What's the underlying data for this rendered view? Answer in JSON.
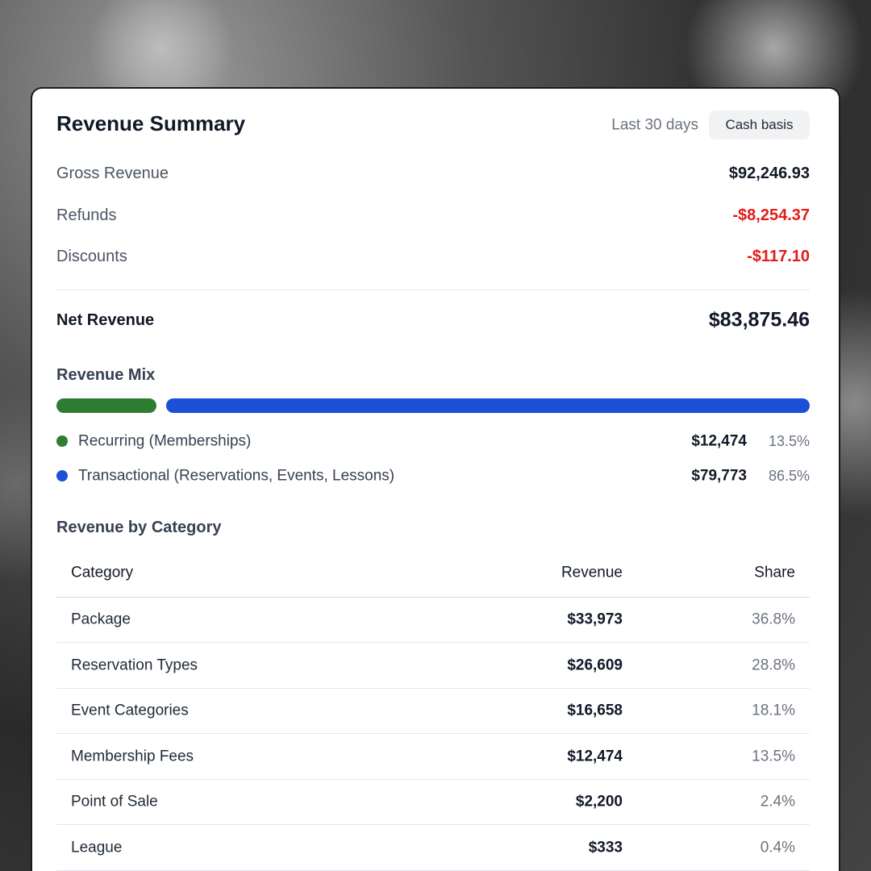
{
  "header": {
    "title": "Revenue Summary",
    "period": "Last 30 days",
    "basis": "Cash basis"
  },
  "summary": {
    "rows": [
      {
        "label": "Gross Revenue",
        "value": "$92,246.93"
      },
      {
        "label": "Refunds",
        "value": "-$8,254.37"
      },
      {
        "label": "Discounts",
        "value": "-$117.10"
      }
    ],
    "net": {
      "label": "Net Revenue",
      "value": "$83,875.46"
    }
  },
  "revenue_mix": {
    "title": "Revenue Mix",
    "items": [
      {
        "name": "Recurring (Memberships)",
        "color": "#2f7d32",
        "amount": "$12,474",
        "share": 13.5,
        "share_label": "13.5%"
      },
      {
        "name": "Transactional (Reservations, Events, Lessons)",
        "color": "#1d4fd8",
        "amount": "$79,773",
        "share": 86.5,
        "share_label": "86.5%"
      }
    ]
  },
  "table": {
    "title": "Revenue by Category",
    "columns": [
      "Category",
      "Revenue",
      "Share"
    ],
    "rows": [
      [
        "Package",
        "$33,973",
        "36.8%"
      ],
      [
        "Reservation Types",
        "$26,609",
        "28.8%"
      ],
      [
        "Event Categories",
        "$16,658",
        "18.1%"
      ],
      [
        "Membership Fees",
        "$12,474",
        "13.5%"
      ],
      [
        "Point of Sale",
        "$2,200",
        "2.4%"
      ],
      [
        "League",
        "$333",
        "0.4%"
      ]
    ]
  }
}
